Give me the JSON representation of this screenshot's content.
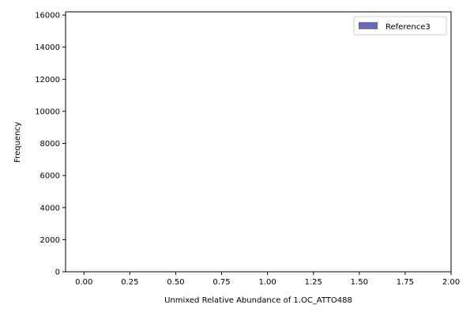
{
  "chart_data": {
    "type": "bar",
    "title": "",
    "xlabel": "Unmixed Relative Abundance of 1.OC_ATTO488",
    "ylabel": "Frequency",
    "xlim": [
      -0.1,
      2.0
    ],
    "ylim": [
      0,
      16200
    ],
    "x_ticks": [
      0.0,
      0.25,
      0.5,
      0.75,
      1.0,
      1.25,
      1.5,
      1.75,
      2.0
    ],
    "x_tick_labels": [
      "0.00",
      "0.25",
      "0.50",
      "0.75",
      "1.00",
      "1.25",
      "1.50",
      "1.75",
      "2.00"
    ],
    "y_ticks": [
      0,
      2000,
      4000,
      6000,
      8000,
      10000,
      12000,
      14000,
      16000
    ],
    "y_tick_labels": [
      "0",
      "2000",
      "4000",
      "6000",
      "8000",
      "10000",
      "12000",
      "14000",
      "16000"
    ],
    "grid": false,
    "legend_position": "top-right",
    "series": [
      {
        "name": "Reference3",
        "color": "#6b6bb3",
        "bins": []
      }
    ]
  }
}
